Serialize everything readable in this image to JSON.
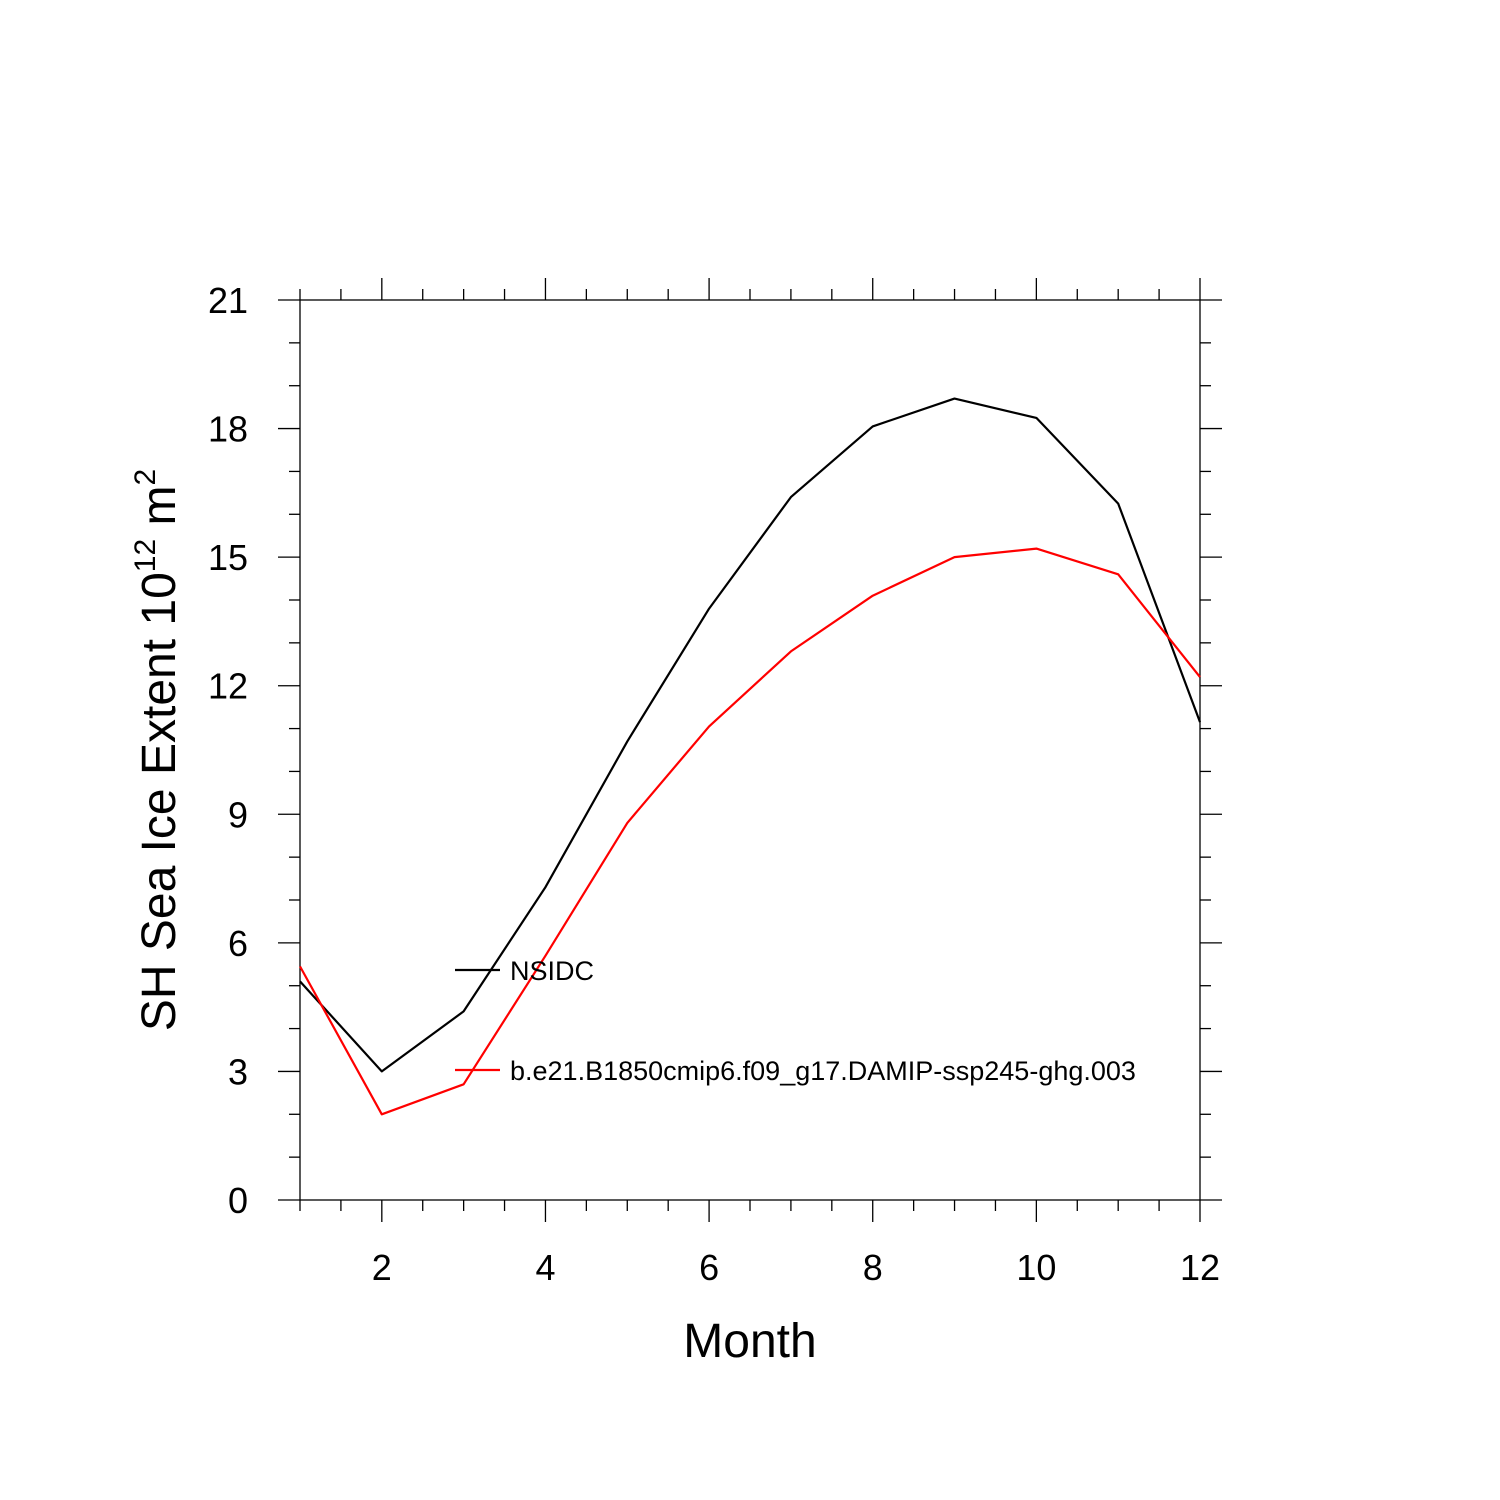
{
  "chart_data": {
    "type": "line",
    "title": "",
    "xlabel": "Month",
    "ylabel": {
      "base": "SH Sea Ice Extent 10",
      "exp1": "12",
      "mid": " m",
      "exp2": "2"
    },
    "xlim": [
      1,
      12
    ],
    "ylim": [
      0,
      21
    ],
    "x_ticks": [
      2,
      4,
      6,
      8,
      10,
      12
    ],
    "y_ticks": [
      0,
      3,
      6,
      9,
      12,
      15,
      18,
      21
    ],
    "grid": false,
    "legend_position": "inside-lower-left",
    "x": [
      1,
      2,
      3,
      4,
      5,
      6,
      7,
      8,
      9,
      10,
      11,
      12
    ],
    "series": [
      {
        "name": "NSIDC",
        "color": "#000000",
        "values": [
          5.1,
          3.0,
          4.4,
          7.3,
          10.7,
          13.8,
          16.4,
          18.05,
          18.7,
          18.25,
          16.25,
          11.15
        ]
      },
      {
        "name": "b.e21.B1850cmip6.f09_g17.DAMIP-ssp245-ghg.003",
        "color": "#ff0000",
        "values": [
          5.45,
          2.0,
          2.7,
          5.7,
          8.8,
          11.05,
          12.8,
          14.1,
          15.0,
          15.2,
          14.6,
          12.2
        ]
      }
    ]
  }
}
